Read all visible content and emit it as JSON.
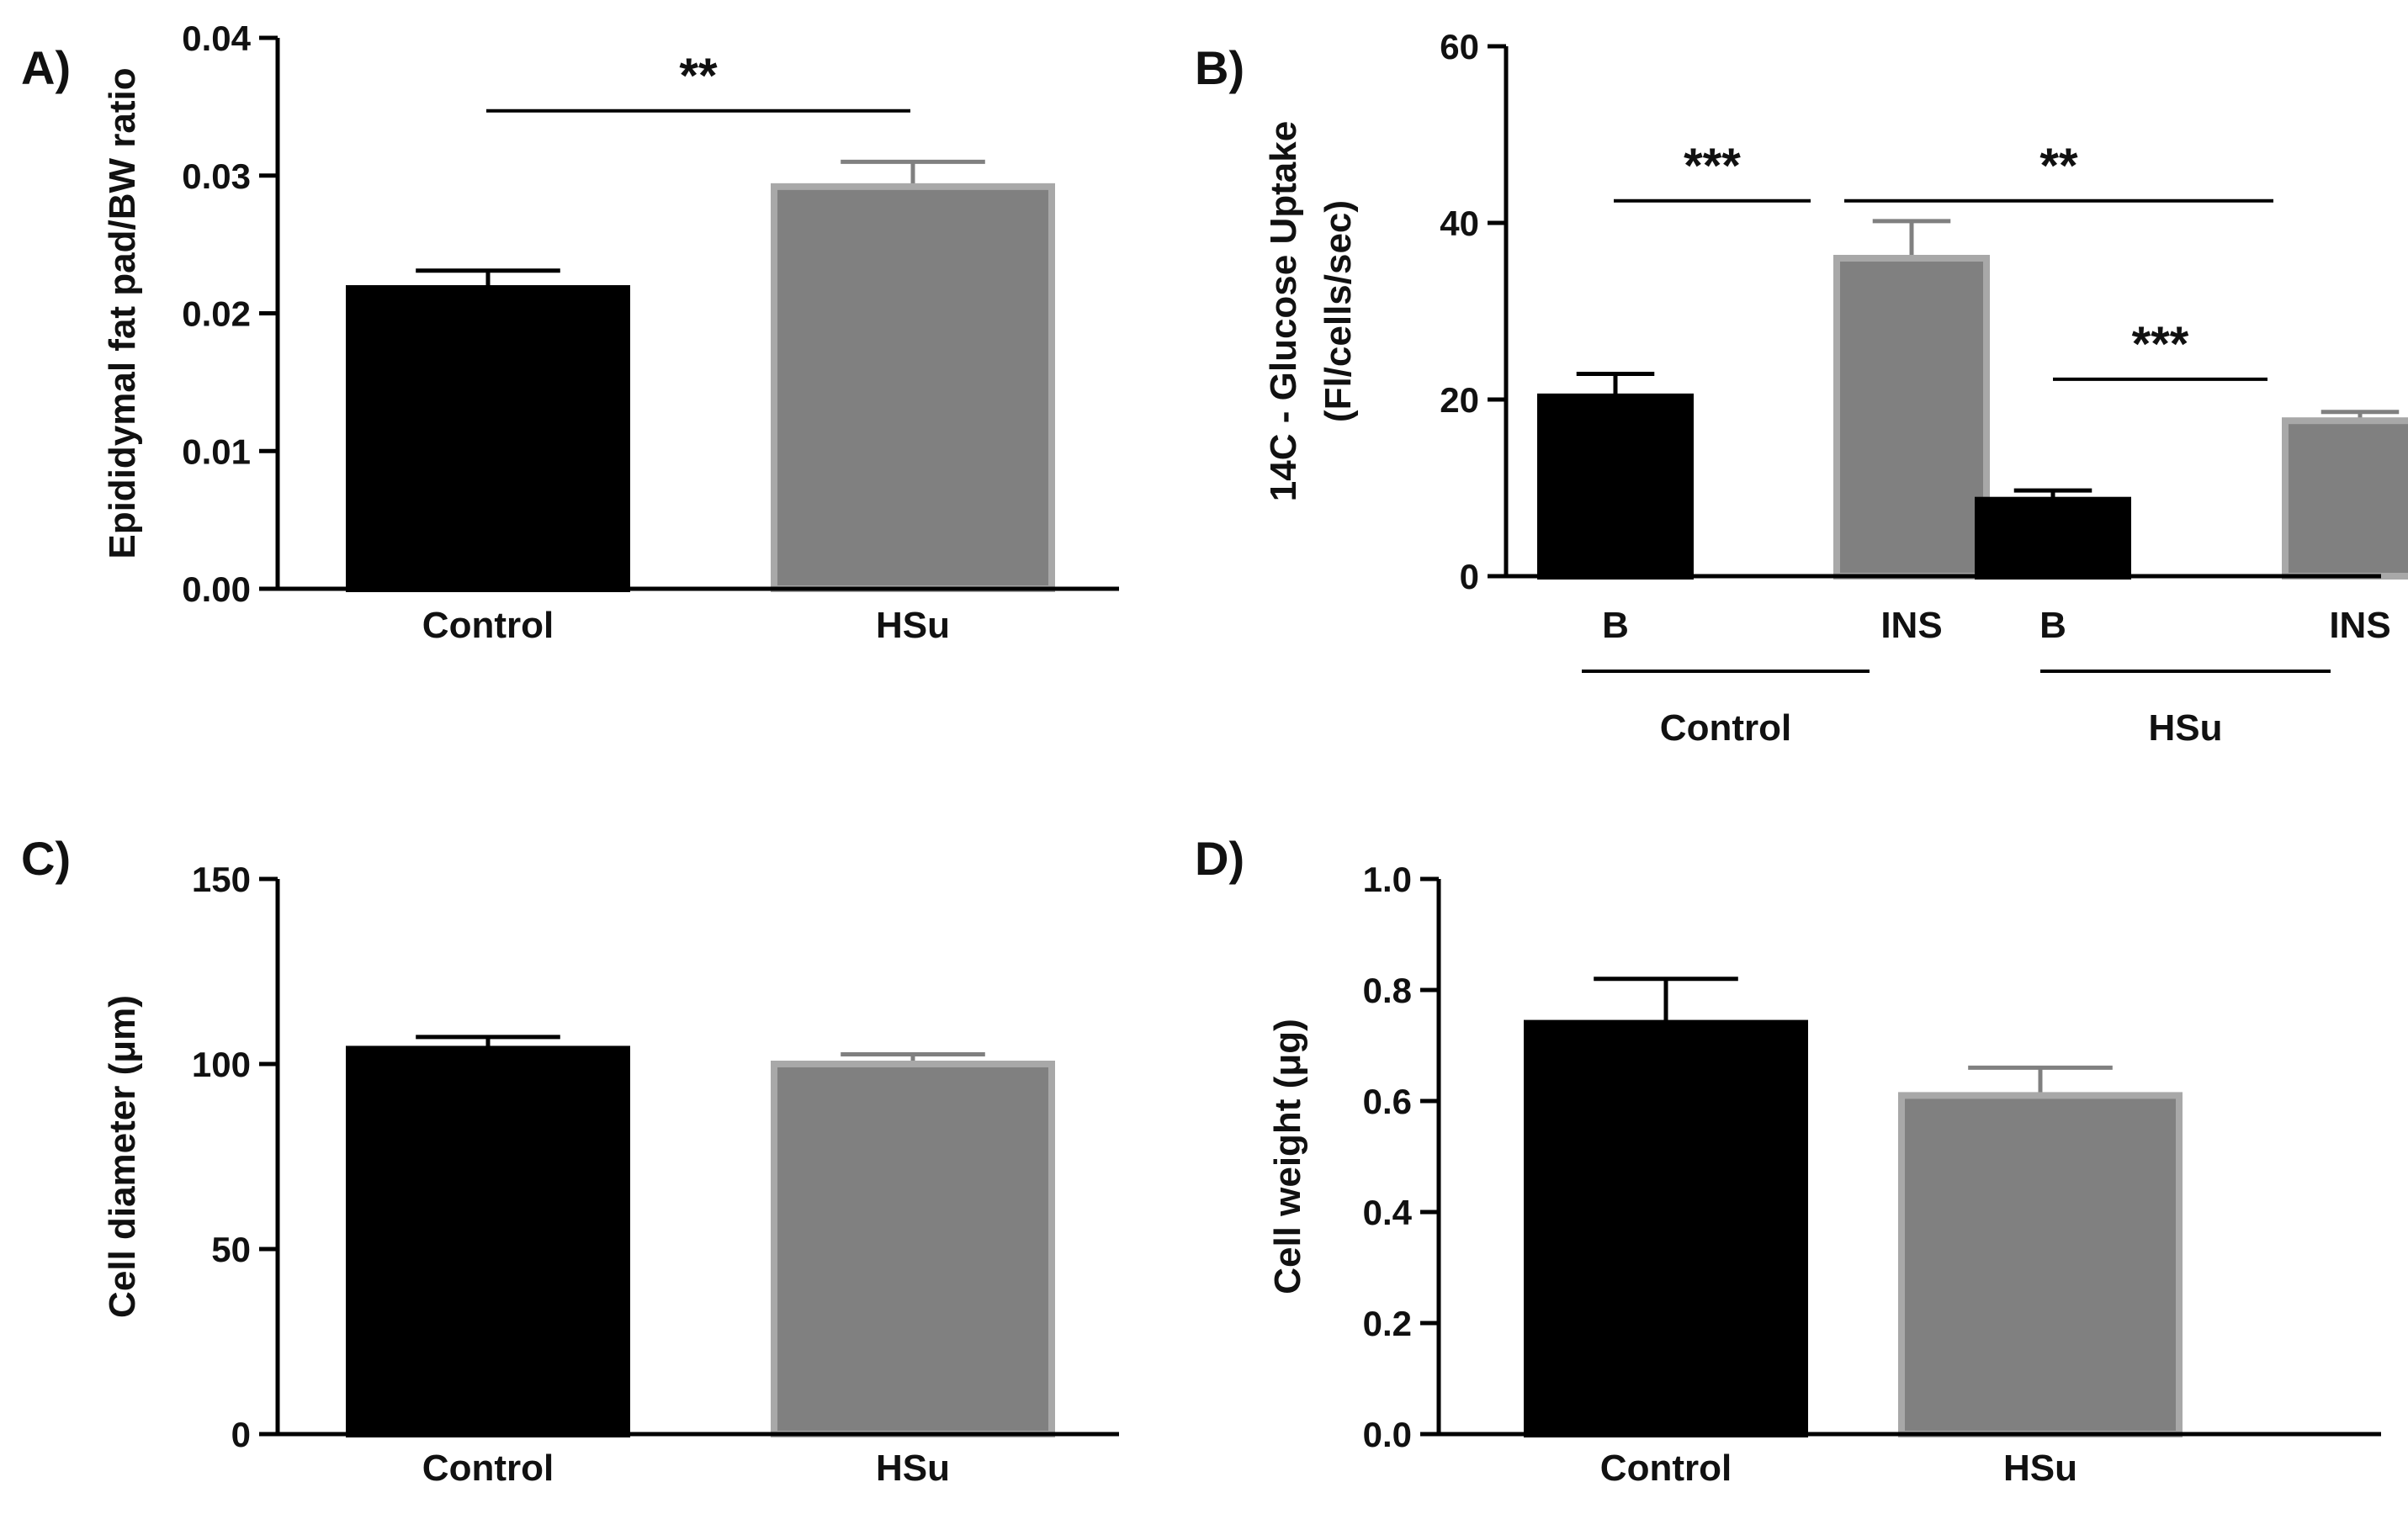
{
  "colors": {
    "control_bar": "#000000",
    "hsu_bar": "#808080",
    "hsu_bar_border": "#a8a8a8",
    "axis": "#000000",
    "text": "#111111"
  },
  "chart_data": [
    {
      "panel": "A)",
      "type": "bar",
      "ylabel": "Epididymal fat pad/BW ratio",
      "xlabel": "",
      "categories": [
        "Control",
        "HSu"
      ],
      "values": [
        0.0218,
        0.0292
      ],
      "errors": [
        0.0013,
        0.0018
      ],
      "ylim": [
        0,
        0.04
      ],
      "yticks": [
        0,
        0.01,
        0.02,
        0.03,
        0.04
      ],
      "ytick_labels": [
        "0.00",
        "0.01",
        "0.02",
        "0.03",
        "0.04"
      ],
      "significance": [
        {
          "label": "**",
          "from": 0,
          "to": 1,
          "y": 0.0347
        }
      ]
    },
    {
      "panel": "B)",
      "type": "bar",
      "ylabel": "14C - Glucose Uptake",
      "ylabel2": "(Fl/cells/sec)",
      "xlabel": "",
      "categories": [
        "B",
        "INS",
        "B",
        "INS"
      ],
      "values": [
        20.3,
        36.0,
        8.6,
        17.6
      ],
      "errors": [
        2.6,
        4.2,
        1.1,
        1.0
      ],
      "ylim": [
        0,
        60
      ],
      "yticks": [
        0,
        20,
        40,
        60
      ],
      "ytick_labels": [
        "0",
        "20",
        "40",
        "60"
      ],
      "groups": [
        {
          "label": "Control",
          "from": 0,
          "to": 1
        },
        {
          "label": "HSu",
          "from": 2,
          "to": 3
        }
      ],
      "significance": [
        {
          "label": "***",
          "from": 0,
          "to": 1,
          "y": 42.5
        },
        {
          "label": "**",
          "from": 1,
          "to": 3,
          "y": 42.5
        },
        {
          "label": "***",
          "from": 2,
          "to": 3,
          "y": 22.3
        }
      ]
    },
    {
      "panel": "C)",
      "type": "bar",
      "ylabel": "Cell diameter (μm)",
      "xlabel": "",
      "categories": [
        "Control",
        "HSu"
      ],
      "values": [
        104,
        100
      ],
      "errors": [
        3.3,
        2.6
      ],
      "ylim": [
        0,
        150
      ],
      "yticks": [
        0,
        50,
        100,
        150
      ],
      "ytick_labels": [
        "0",
        "50",
        "100",
        "150"
      ],
      "significance": []
    },
    {
      "panel": "D)",
      "type": "bar",
      "ylabel": "Cell weight (μg)",
      "xlabel": "",
      "categories": [
        "Control",
        "HSu"
      ],
      "values": [
        0.74,
        0.61
      ],
      "errors": [
        0.08,
        0.05
      ],
      "ylim": [
        0,
        1.0
      ],
      "yticks": [
        0,
        0.2,
        0.4,
        0.6,
        0.8,
        1.0
      ],
      "ytick_labels": [
        "0.0",
        "0.2",
        "0.4",
        "0.6",
        "0.8",
        "1.0"
      ],
      "significance": []
    }
  ]
}
